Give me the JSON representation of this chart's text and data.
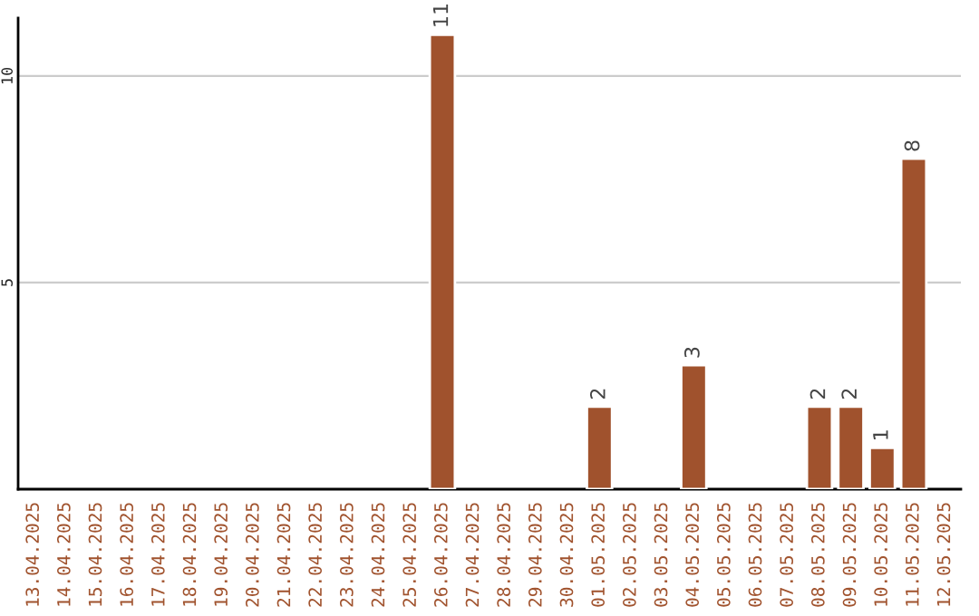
{
  "chart_data": {
    "type": "bar",
    "categories": [
      "13.04.2025",
      "14.04.2025",
      "15.04.2025",
      "16.04.2025",
      "17.04.2025",
      "18.04.2025",
      "19.04.2025",
      "20.04.2025",
      "21.04.2025",
      "22.04.2025",
      "23.04.2025",
      "24.04.2025",
      "25.04.2025",
      "26.04.2025",
      "27.04.2025",
      "28.04.2025",
      "29.04.2025",
      "30.04.2025",
      "01.05.2025",
      "02.05.2025",
      "03.05.2025",
      "04.05.2025",
      "05.05.2025",
      "06.05.2025",
      "07.05.2025",
      "08.05.2025",
      "09.05.2025",
      "10.05.2025",
      "11.05.2025",
      "12.05.2025"
    ],
    "values": [
      null,
      null,
      null,
      null,
      null,
      null,
      null,
      null,
      null,
      null,
      null,
      null,
      null,
      11,
      null,
      null,
      null,
      null,
      2,
      null,
      null,
      3,
      null,
      null,
      null,
      2,
      2,
      1,
      8,
      null
    ],
    "value_labels": [
      null,
      null,
      null,
      null,
      null,
      null,
      null,
      null,
      null,
      null,
      null,
      null,
      null,
      "11",
      null,
      null,
      null,
      null,
      "2",
      null,
      null,
      "3",
      null,
      null,
      null,
      "2",
      "2",
      "1",
      "8",
      null
    ],
    "color": "#a0522d",
    "ylim": [
      0,
      11.4
    ],
    "yticks": [
      5,
      10
    ],
    "grid": "y"
  }
}
